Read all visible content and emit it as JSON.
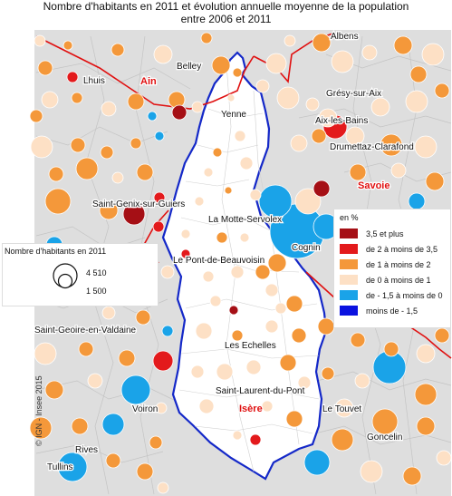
{
  "title": {
    "line1": "Nombre d'habitants en 2011 et évolution annuelle moyenne de la population",
    "line2": "entre 2006 et 2011"
  },
  "colors": {
    "cat1": "#a50f15",
    "cat2": "#e31a1c",
    "cat3": "#f4983a",
    "cat4": "#fde0c5",
    "cat5": "#1aa3e8",
    "cat6": "#0a12e0",
    "background": "#dedede",
    "study_area_border": "#1428c8",
    "department_border": "#e01010"
  },
  "size_legend": {
    "title": "Nombre d'habitants en 2011",
    "large_value": "4 510",
    "small_value": "1 500"
  },
  "color_legend": {
    "title": "en %",
    "items": [
      {
        "label": "3,5 et plus",
        "color": "#a50f15"
      },
      {
        "label": "de 2 à moins de 3,5",
        "color": "#e31a1c"
      },
      {
        "label": "de 1 à moins de 2",
        "color": "#f4983a"
      },
      {
        "label": "de 0 à moins de 1",
        "color": "#fde0c5"
      },
      {
        "label": "de - 1,5 à moins de 0",
        "color": "#1aa3e8"
      },
      {
        "label": "moins de - 1,5",
        "color": "#0a12e0"
      }
    ]
  },
  "places": [
    "Albens",
    "Lhuis",
    "Belley",
    "Grésy-sur-Aix",
    "Yenne",
    "Aix-les-Bains",
    "Drumettaz-Clarafond",
    "Saint-Genix-sur-Guiers",
    "La Motte-Servolex",
    "Cognin",
    "Le Pont-de-Beauvoisin",
    "Saint-Geoire-en-Valdaine",
    "Les Echelles",
    "Saint-Laurent-du-Pont",
    "Voiron",
    "Le Touvet",
    "Rives",
    "Goncelin",
    "Tullins"
  ],
  "regions": [
    "Ain",
    "Savoie",
    "Isère"
  ],
  "copyright": "© IGN - Insee 2015"
}
